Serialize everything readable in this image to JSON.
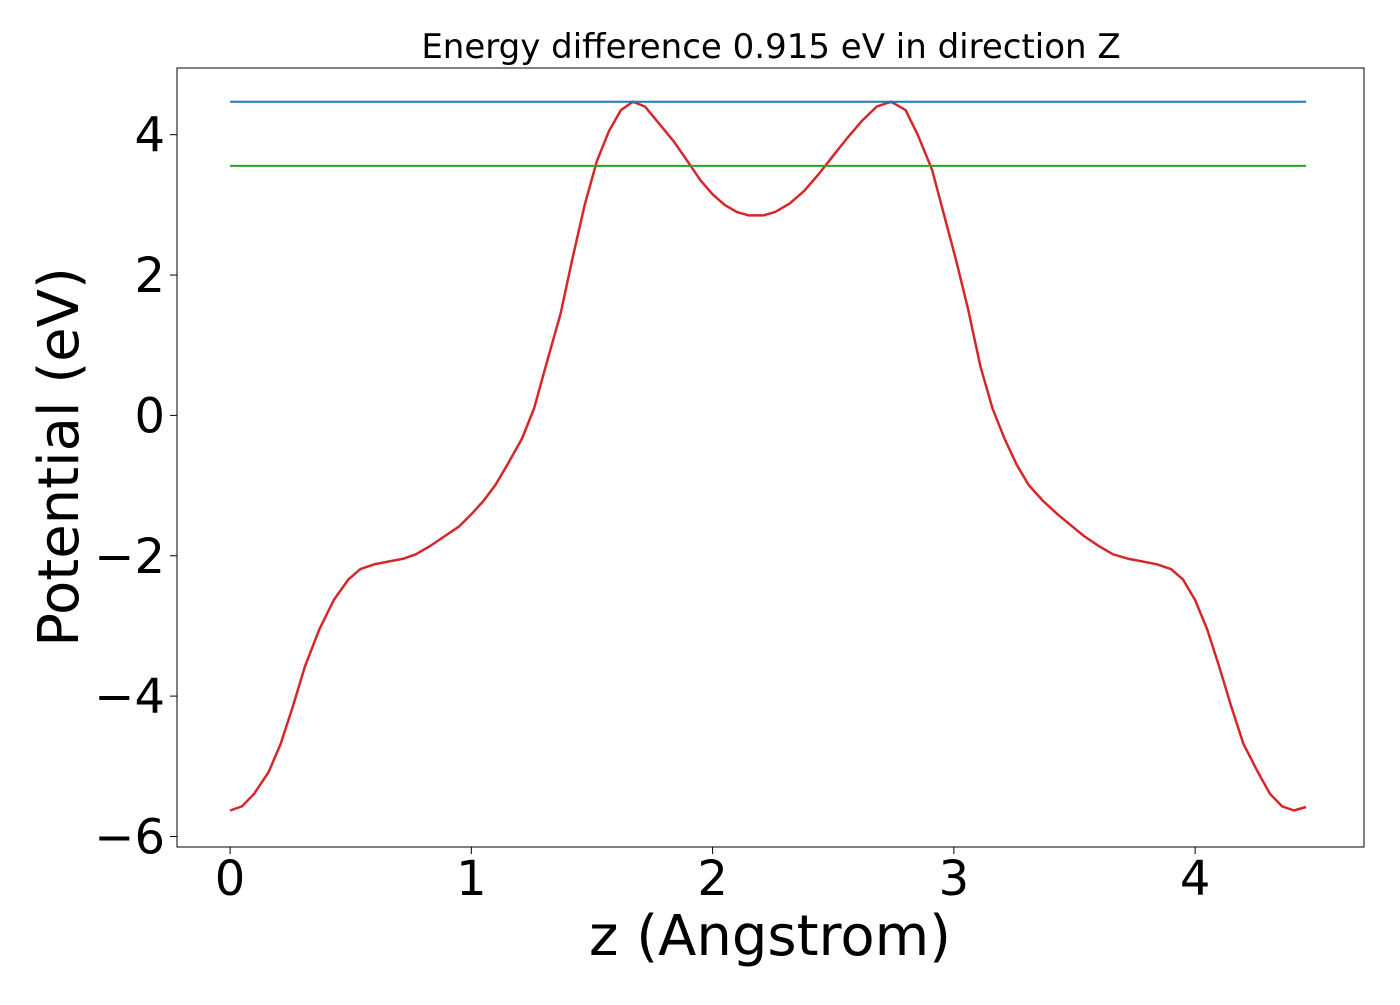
{
  "chart_data": {
    "type": "line",
    "title": "Energy difference 0.915 eV in direction Z",
    "xlabel": "z (Angstrom)",
    "ylabel": "Potential (eV)",
    "xlim": [
      -0.22,
      4.7
    ],
    "ylim": [
      -6.15,
      4.95
    ],
    "xticks": [
      0,
      1,
      2,
      3,
      4
    ],
    "yticks": [
      -6,
      -4,
      -2,
      0,
      2,
      4
    ],
    "xtick_labels": [
      "0",
      "1",
      "2",
      "3",
      "4"
    ],
    "ytick_labels": [
      "−6",
      "−4",
      "−2",
      "0",
      "2",
      "4"
    ],
    "grid": false,
    "legend": "none",
    "series": [
      {
        "color": "#d62728",
        "x": [
          0.0,
          0.05,
          0.1,
          0.16,
          0.21,
          0.26,
          0.31,
          0.37,
          0.43,
          0.49,
          0.54,
          0.6,
          0.66,
          0.72,
          0.77,
          0.83,
          0.89,
          0.95,
          1.0,
          1.05,
          1.1,
          1.15,
          1.21,
          1.26,
          1.31,
          1.37,
          1.42,
          1.47,
          1.52,
          1.57,
          1.62,
          1.67,
          1.72,
          1.78,
          1.84,
          1.9,
          1.95,
          2.0,
          2.05,
          2.1,
          2.15,
          2.21,
          2.26,
          2.32,
          2.38,
          2.44,
          2.5,
          2.56,
          2.62,
          2.68,
          2.74,
          2.8,
          2.85,
          2.91,
          2.96,
          3.01,
          3.06,
          3.11,
          3.16,
          3.21,
          3.26,
          3.31,
          3.37,
          3.43,
          3.49,
          3.54,
          3.6,
          3.66,
          3.72,
          3.78,
          3.84,
          3.9,
          3.95,
          4.0,
          4.05,
          4.1,
          4.15,
          4.2,
          4.26,
          4.31,
          4.36,
          4.41,
          4.46
        ],
        "y": [
          -5.63,
          -5.57,
          -5.39,
          -5.08,
          -4.68,
          -4.15,
          -3.58,
          -3.05,
          -2.63,
          -2.34,
          -2.19,
          -2.12,
          -2.08,
          -2.04,
          -1.98,
          -1.86,
          -1.72,
          -1.58,
          -1.41,
          -1.22,
          -0.99,
          -0.7,
          -0.33,
          0.1,
          0.72,
          1.45,
          2.25,
          3.0,
          3.62,
          4.05,
          4.35,
          4.47,
          4.4,
          4.15,
          3.9,
          3.6,
          3.35,
          3.15,
          3.0,
          2.9,
          2.85,
          2.85,
          2.9,
          3.02,
          3.2,
          3.44,
          3.7,
          3.96,
          4.2,
          4.4,
          4.47,
          4.35,
          4.0,
          3.5,
          2.85,
          2.2,
          1.5,
          0.7,
          0.1,
          -0.33,
          -0.7,
          -0.99,
          -1.22,
          -1.41,
          -1.58,
          -1.72,
          -1.86,
          -1.98,
          -2.04,
          -2.08,
          -2.12,
          -2.19,
          -2.34,
          -2.63,
          -3.05,
          -3.58,
          -4.15,
          -4.68,
          -5.08,
          -5.39,
          -5.57,
          -5.63,
          -5.58
        ]
      },
      {
        "color": "#1f77b4",
        "x": [
          0.0,
          4.46
        ],
        "y": [
          4.47,
          4.47
        ]
      },
      {
        "color": "#2ca02c",
        "x": [
          0.0,
          4.46
        ],
        "y": [
          3.555,
          3.555
        ]
      }
    ]
  }
}
